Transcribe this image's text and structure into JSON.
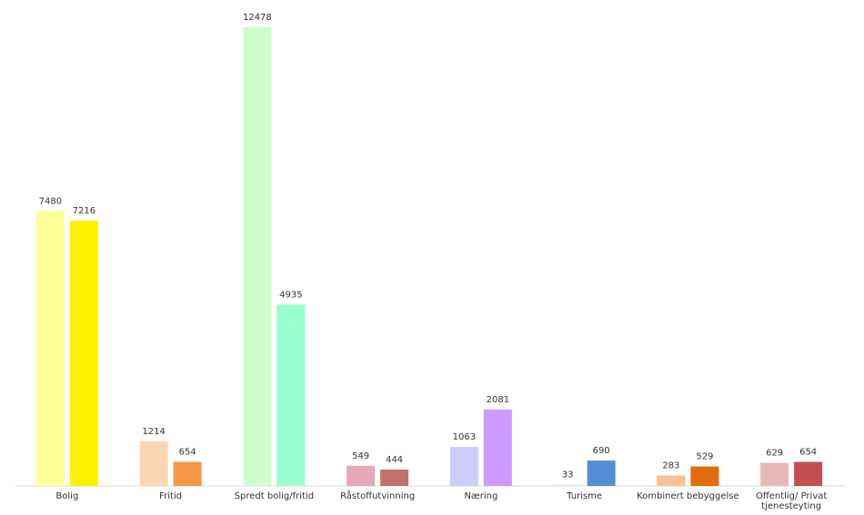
{
  "chart_data": {
    "type": "bar",
    "categories": [
      "Bolig",
      "Fritid",
      "Spredt bolig/fritid",
      "Råstoffutvinning",
      "Næring",
      "Turisme",
      "Kombinert bebyggelse",
      "Offentlig/ Privat tjenesteyting"
    ],
    "category_lines": [
      [
        "Bolig"
      ],
      [
        "Fritid"
      ],
      [
        "Spredt bolig/fritid"
      ],
      [
        "Råstoffutvinning"
      ],
      [
        "Næring"
      ],
      [
        "Turisme"
      ],
      [
        "Kombinert bebyggelse"
      ],
      [
        "Offentlig/ Privat",
        "tjenesteyting"
      ]
    ],
    "series": [
      {
        "values": [
          7480,
          1214,
          12478,
          549,
          1063,
          33,
          283,
          629
        ]
      },
      {
        "values": [
          7216,
          654,
          4935,
          444,
          2081,
          690,
          529,
          654
        ]
      }
    ],
    "colors": [
      [
        "#FFFF99",
        "#FFF200"
      ],
      [
        "#FCD5B4",
        "#F79646"
      ],
      [
        "#CCFFCC",
        "#99FFCC"
      ],
      [
        "#E6A7B8",
        "#C0706E"
      ],
      [
        "#CCCCFF",
        "#CC99FF"
      ],
      [
        "#DDE6F0",
        "#558ED5"
      ],
      [
        "#FAC090",
        "#E46C0A"
      ],
      [
        "#E6B9B8",
        "#C0504D"
      ]
    ],
    "ylim": [
      0,
      12478
    ],
    "grid": false,
    "legend": "none"
  }
}
